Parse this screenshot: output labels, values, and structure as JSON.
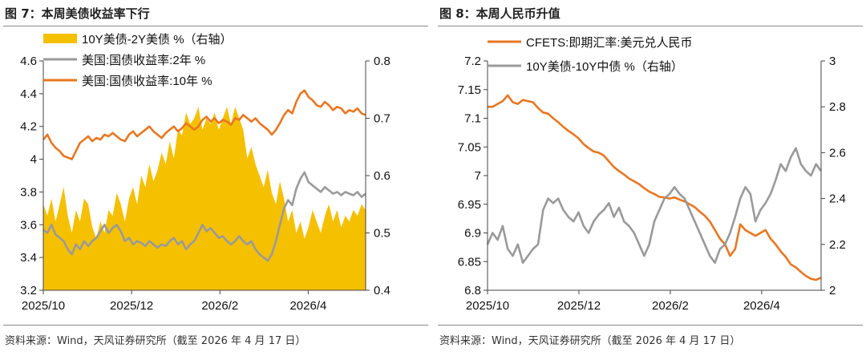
{
  "chart_data": [
    {
      "type": "line",
      "title": "图 7：本周美债收益率下行",
      "source": "资料来源：Wind，天风证券研究所（截至 2026 年 4 月 17 日）",
      "x_ticks": [
        "2025/10",
        "2025/12",
        "2026/2",
        "2026/4"
      ],
      "left_axis": {
        "ylim": [
          3.2,
          4.6
        ],
        "ticks": [
          "3.2",
          "3.4",
          "3.6",
          "3.8",
          "4",
          "4.2",
          "4.4",
          "4.6"
        ]
      },
      "right_axis": {
        "ylim": [
          0.4,
          0.8
        ],
        "ticks": [
          "0.4",
          "0.5",
          "0.6",
          "0.7",
          "0.8"
        ]
      },
      "colors": {
        "spread": "#F5C000",
        "y2": "#9a9a9a",
        "y10": "#E87722"
      },
      "series": [
        {
          "name": "10Y美债-2Y美债 %（右轴）",
          "kind": "area",
          "axis": "right",
          "values": [
            0.55,
            0.53,
            0.56,
            0.52,
            0.55,
            0.58,
            0.53,
            0.5,
            0.54,
            0.52,
            0.56,
            0.55,
            0.51,
            0.49,
            0.52,
            0.5,
            0.54,
            0.53,
            0.57,
            0.55,
            0.52,
            0.56,
            0.58,
            0.55,
            0.6,
            0.58,
            0.62,
            0.59,
            0.61,
            0.64,
            0.62,
            0.66,
            0.63,
            0.68,
            0.67,
            0.71,
            0.69,
            0.7,
            0.72,
            0.68,
            0.7,
            0.69,
            0.71,
            0.68,
            0.7,
            0.72,
            0.69,
            0.72,
            0.7,
            0.68,
            0.63,
            0.65,
            0.62,
            0.6,
            0.58,
            0.61,
            0.57,
            0.55,
            0.59,
            0.56,
            0.52,
            0.54,
            0.5,
            0.52,
            0.49,
            0.51,
            0.54,
            0.52,
            0.5,
            0.53,
            0.55,
            0.52,
            0.54,
            0.51,
            0.53,
            0.52,
            0.54,
            0.53,
            0.55,
            0.54
          ]
        },
        {
          "name": "美国:国债收益率:2年 %",
          "kind": "line",
          "axis": "left",
          "values": [
            3.57,
            3.55,
            3.6,
            3.54,
            3.52,
            3.5,
            3.45,
            3.42,
            3.48,
            3.45,
            3.5,
            3.47,
            3.5,
            3.52,
            3.56,
            3.6,
            3.55,
            3.58,
            3.6,
            3.56,
            3.5,
            3.52,
            3.48,
            3.5,
            3.49,
            3.47,
            3.5,
            3.48,
            3.46,
            3.48,
            3.47,
            3.5,
            3.52,
            3.48,
            3.5,
            3.45,
            3.48,
            3.5,
            3.55,
            3.6,
            3.56,
            3.58,
            3.55,
            3.52,
            3.53,
            3.5,
            3.48,
            3.5,
            3.53,
            3.5,
            3.48,
            3.5,
            3.45,
            3.42,
            3.4,
            3.38,
            3.42,
            3.5,
            3.6,
            3.7,
            3.75,
            3.72,
            3.82,
            3.88,
            3.92,
            3.86,
            3.84,
            3.82,
            3.8,
            3.83,
            3.81,
            3.79,
            3.8,
            3.78,
            3.8,
            3.79,
            3.78,
            3.8,
            3.77,
            3.79
          ]
        },
        {
          "name": "美国:国债收益率:10年 %",
          "kind": "line",
          "axis": "left",
          "values": [
            4.12,
            4.15,
            4.1,
            4.07,
            4.05,
            4.02,
            4.01,
            4.0,
            4.05,
            4.1,
            4.12,
            4.14,
            4.11,
            4.13,
            4.12,
            4.15,
            4.14,
            4.16,
            4.14,
            4.12,
            4.11,
            4.15,
            4.17,
            4.14,
            4.16,
            4.18,
            4.2,
            4.17,
            4.15,
            4.13,
            4.16,
            4.18,
            4.2,
            4.17,
            4.19,
            4.22,
            4.2,
            4.18,
            4.2,
            4.24,
            4.26,
            4.23,
            4.25,
            4.22,
            4.24,
            4.23,
            4.21,
            4.25,
            4.24,
            4.27,
            4.25,
            4.23,
            4.25,
            4.22,
            4.2,
            4.18,
            4.15,
            4.18,
            4.22,
            4.27,
            4.3,
            4.28,
            4.35,
            4.4,
            4.42,
            4.38,
            4.36,
            4.33,
            4.32,
            4.35,
            4.33,
            4.3,
            4.32,
            4.31,
            4.28,
            4.3,
            4.29,
            4.31,
            4.28,
            4.27
          ]
        }
      ]
    },
    {
      "type": "line",
      "title": "图 8：本周人民币升值",
      "source": "资料来源：Wind，天风证券研究所（截至 2026 年 4 月 17 日）",
      "x_ticks": [
        "2025/10",
        "2025/12",
        "2026/2",
        "2026/4"
      ],
      "left_axis": {
        "ylim": [
          6.8,
          7.2
        ],
        "ticks": [
          "6.8",
          "6.85",
          "6.9",
          "6.95",
          "7",
          "7.05",
          "7.1",
          "7.15",
          "7.2"
        ]
      },
      "right_axis": {
        "ylim": [
          2.0,
          3.0
        ],
        "ticks": [
          "2",
          "2.2",
          "2.4",
          "2.6",
          "2.8",
          "3"
        ]
      },
      "colors": {
        "cfets": "#E87722",
        "spread": "#9a9a9a"
      },
      "series": [
        {
          "name": "CFETS:即期汇率:美元兑人民币",
          "kind": "line",
          "axis": "left",
          "values": [
            7.12,
            7.12,
            7.125,
            7.13,
            7.14,
            7.128,
            7.125,
            7.132,
            7.13,
            7.128,
            7.118,
            7.11,
            7.108,
            7.1,
            7.093,
            7.085,
            7.078,
            7.072,
            7.065,
            7.055,
            7.048,
            7.042,
            7.04,
            7.035,
            7.025,
            7.015,
            7.008,
            7.002,
            6.995,
            6.99,
            6.985,
            6.978,
            6.972,
            6.968,
            6.963,
            6.962,
            6.96,
            6.962,
            6.958,
            6.955,
            6.95,
            6.945,
            6.937,
            6.93,
            6.92,
            6.905,
            6.89,
            6.88,
            6.86,
            6.872,
            6.915,
            6.905,
            6.9,
            6.895,
            6.9,
            6.905,
            6.89,
            6.88,
            6.868,
            6.858,
            6.845,
            6.84,
            6.832,
            6.825,
            6.82,
            6.818,
            6.822
          ]
        },
        {
          "name": "10Y美债-10Y中债 %（右轴）",
          "kind": "line",
          "axis": "right",
          "values": [
            2.2,
            2.25,
            2.22,
            2.28,
            2.18,
            2.15,
            2.2,
            2.12,
            2.15,
            2.18,
            2.2,
            2.35,
            2.4,
            2.38,
            2.4,
            2.35,
            2.32,
            2.3,
            2.34,
            2.28,
            2.25,
            2.3,
            2.33,
            2.35,
            2.38,
            2.32,
            2.36,
            2.3,
            2.28,
            2.25,
            2.2,
            2.15,
            2.2,
            2.3,
            2.35,
            2.4,
            2.42,
            2.45,
            2.42,
            2.4,
            2.35,
            2.3,
            2.25,
            2.2,
            2.15,
            2.12,
            2.18,
            2.2,
            2.25,
            2.32,
            2.4,
            2.45,
            2.42,
            2.3,
            2.35,
            2.38,
            2.42,
            2.48,
            2.55,
            2.52,
            2.58,
            2.62,
            2.55,
            2.52,
            2.5,
            2.55,
            2.52
          ]
        }
      ]
    }
  ]
}
